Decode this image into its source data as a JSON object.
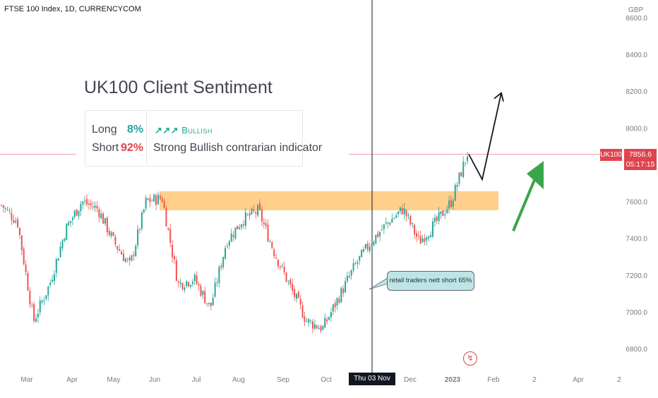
{
  "header": {
    "title": "FTSE 100 Index, 1D, CURRENCYCOM"
  },
  "sentiment": {
    "title": "UK100 Client Sentiment",
    "long_label": "Long",
    "long_pct": "8%",
    "short_label": "Short",
    "short_pct": "92%",
    "signal_arrows": "↗↗↗",
    "signal": "Bullish",
    "description": "Strong Bullish contrarian indicator"
  },
  "callout": {
    "text": "retail traders nett short 65%"
  },
  "price_tag": {
    "symbol": "UK100",
    "price": "7856.6",
    "countdown": "05:17:15"
  },
  "crosshair_date": "Thu 03 Nov '22",
  "colors": {
    "up": "#26a69a",
    "down": "#ef5350",
    "zone": "#ffc877",
    "green_arrow": "#3aa64a",
    "tag": "#e0434d"
  },
  "icons": {
    "alert": "lightning-icon"
  },
  "chart_data": {
    "type": "candlestick",
    "currency_label": "GBP",
    "y_ticks": [
      "8600.0",
      "8400.0",
      "8200.0",
      "8000.0",
      "7800.0",
      "7600.0",
      "7400.0",
      "7200.0",
      "7000.0",
      "6800.0"
    ],
    "y_tick_values": [
      8600,
      8400,
      8200,
      8000,
      7800,
      7600,
      7400,
      7200,
      7000,
      6800
    ],
    "ylim": [
      6700,
      8620
    ],
    "x_ticks": [
      "Mar",
      "Apr",
      "May",
      "Jun",
      "Jul",
      "Aug",
      "Sep",
      "Oct",
      "Nov",
      "Dec",
      "2023",
      "Feb",
      "2",
      "Apr",
      "2"
    ],
    "resistance_zone": [
      7550,
      7650
    ],
    "last_price": 7856.6,
    "approx_closes": [
      7580,
      7490,
      6950,
      7150,
      7450,
      7600,
      7560,
      7380,
      7250,
      7600,
      7620,
      7150,
      7180,
      7020,
      7380,
      7500,
      7550,
      7320,
      7130,
      6950,
      6910,
      7080,
      7250,
      7380,
      7480,
      7560,
      7380,
      7480,
      7600,
      7860
    ],
    "projection_up": [
      [
        7856.6,
        7720
      ],
      [
        7720,
        8190
      ]
    ],
    "projection_green": [
      7440,
      7820
    ]
  }
}
